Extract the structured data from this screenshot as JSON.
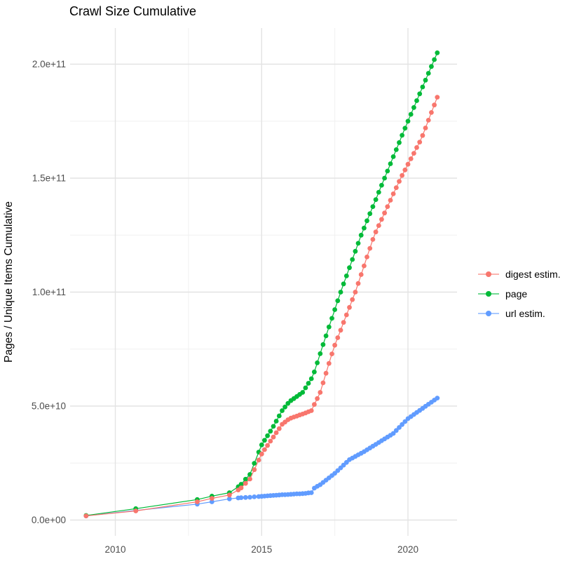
{
  "title": "Crawl Size Cumulative",
  "y_axis": {
    "label": "Pages / Unique Items Cumulative",
    "ticks": [
      {
        "label": "0.0e+00",
        "value_e9": 0
      },
      {
        "label": "5.0e+10",
        "value_e9": 50
      },
      {
        "label": "1.0e+11",
        "value_e9": 100
      },
      {
        "label": "1.5e+11",
        "value_e9": 150
      },
      {
        "label": "2.0e+11",
        "value_e9": 200
      }
    ],
    "minor_e9": [
      25,
      75,
      125,
      175
    ]
  },
  "x_axis": {
    "ticks": [
      {
        "label": "2010",
        "value": 2010
      },
      {
        "label": "2015",
        "value": 2015
      },
      {
        "label": "2020",
        "value": 2020
      }
    ],
    "minor": [
      2012.5,
      2017.5
    ]
  },
  "legend": {
    "position": "right",
    "items": [
      {
        "label": "digest estim.",
        "color": "#F8766D"
      },
      {
        "label": "page",
        "color": "#00BA38"
      },
      {
        "label": "url estim.",
        "color": "#619CFF"
      }
    ]
  },
  "chart_data": {
    "type": "line",
    "title": "Crawl Size Cumulative",
    "xlabel": "",
    "ylabel": "Pages / Unique Items Cumulative",
    "x_unit": "year (decimal)",
    "y_unit": "count in billions (1e9 items)",
    "xlim": [
      2008.4,
      2021.6
    ],
    "ylim_e9": [
      0,
      216
    ],
    "grid": true,
    "legend_position": "right",
    "marker": "point",
    "series": [
      {
        "name": "digest estim.",
        "color": "#F8766D",
        "points": [
          [
            2009,
            1.8
          ],
          [
            2010.7,
            4
          ],
          [
            2012.8,
            8
          ],
          [
            2013.3,
            9.5
          ],
          [
            2013.9,
            11
          ],
          [
            2014.2,
            13.2
          ],
          [
            2014.3,
            14.1
          ],
          [
            2014.45,
            16.1
          ],
          [
            2014.6,
            18
          ],
          [
            2014.75,
            22.1
          ],
          [
            2014.9,
            26.3
          ],
          [
            2015,
            29
          ],
          [
            2015.1,
            30.9
          ],
          [
            2015.2,
            32.7
          ],
          [
            2015.3,
            34.6
          ],
          [
            2015.4,
            36.4
          ],
          [
            2015.5,
            38.3
          ],
          [
            2015.6,
            40.1
          ],
          [
            2015.7,
            42
          ],
          [
            2015.8,
            43
          ],
          [
            2015.9,
            44
          ],
          [
            2016,
            44.7
          ],
          [
            2016.1,
            45.2
          ],
          [
            2016.2,
            45.6
          ],
          [
            2016.3,
            46.1
          ],
          [
            2016.4,
            46.5
          ],
          [
            2016.5,
            47
          ],
          [
            2016.6,
            47.5
          ],
          [
            2016.7,
            48
          ],
          [
            2016.8,
            50.7
          ],
          [
            2016.9,
            53.3
          ],
          [
            2017,
            56
          ],
          [
            2017.1,
            60.2
          ],
          [
            2017.2,
            64.4
          ],
          [
            2017.3,
            68.7
          ],
          [
            2017.4,
            72.9
          ],
          [
            2017.5,
            76.7
          ],
          [
            2017.6,
            80
          ],
          [
            2017.7,
            83.3
          ],
          [
            2017.8,
            86.7
          ],
          [
            2017.9,
            90
          ],
          [
            2018,
            93.3
          ],
          [
            2018.1,
            96.7
          ],
          [
            2018.2,
            100
          ],
          [
            2018.3,
            103.8
          ],
          [
            2018.4,
            107.7
          ],
          [
            2018.5,
            111.5
          ],
          [
            2018.6,
            115.4
          ],
          [
            2018.7,
            119.2
          ],
          [
            2018.8,
            123.1
          ],
          [
            2018.9,
            126.4
          ],
          [
            2019,
            129.2
          ],
          [
            2019.1,
            131.9
          ],
          [
            2019.2,
            134.7
          ],
          [
            2019.3,
            137.5
          ],
          [
            2019.4,
            140.3
          ],
          [
            2019.5,
            143.1
          ],
          [
            2019.6,
            145.8
          ],
          [
            2019.7,
            148.6
          ],
          [
            2019.8,
            151.2
          ],
          [
            2019.9,
            153.6
          ],
          [
            2020,
            156.1
          ],
          [
            2020.1,
            158.5
          ],
          [
            2020.2,
            160.9
          ],
          [
            2020.3,
            163.4
          ],
          [
            2020.4,
            165.8
          ],
          [
            2020.5,
            168.7
          ],
          [
            2020.6,
            172
          ],
          [
            2020.7,
            175.4
          ],
          [
            2020.8,
            178.8
          ],
          [
            2020.9,
            182.1
          ],
          [
            2021,
            185.5
          ]
        ]
      },
      {
        "name": "page",
        "color": "#00BA38",
        "points": [
          [
            2009,
            2
          ],
          [
            2010.7,
            5
          ],
          [
            2012.8,
            9
          ],
          [
            2013.3,
            10.5
          ],
          [
            2013.9,
            12
          ],
          [
            2014.2,
            14.6
          ],
          [
            2014.3,
            15.7
          ],
          [
            2014.45,
            17.9
          ],
          [
            2014.6,
            20
          ],
          [
            2014.75,
            24.9
          ],
          [
            2014.9,
            29.8
          ],
          [
            2015,
            33
          ],
          [
            2015.1,
            35
          ],
          [
            2015.2,
            37
          ],
          [
            2015.3,
            39
          ],
          [
            2015.4,
            41.1
          ],
          [
            2015.5,
            43.4
          ],
          [
            2015.6,
            45.7
          ],
          [
            2015.7,
            48
          ],
          [
            2015.8,
            49.6
          ],
          [
            2015.9,
            51.2
          ],
          [
            2016,
            52.4
          ],
          [
            2016.1,
            53.3
          ],
          [
            2016.2,
            54.2
          ],
          [
            2016.3,
            55.1
          ],
          [
            2016.4,
            56
          ],
          [
            2016.5,
            58
          ],
          [
            2016.6,
            60
          ],
          [
            2016.7,
            62
          ],
          [
            2016.8,
            65
          ],
          [
            2016.9,
            69
          ],
          [
            2017,
            73
          ],
          [
            2017.1,
            77
          ],
          [
            2017.2,
            80.8
          ],
          [
            2017.3,
            84.7
          ],
          [
            2017.4,
            88.5
          ],
          [
            2017.5,
            92.3
          ],
          [
            2017.6,
            96.2
          ],
          [
            2017.7,
            100
          ],
          [
            2017.8,
            103.6
          ],
          [
            2017.9,
            107.1
          ],
          [
            2018,
            110.7
          ],
          [
            2018.1,
            114.3
          ],
          [
            2018.2,
            117.9
          ],
          [
            2018.3,
            121.4
          ],
          [
            2018.4,
            125
          ],
          [
            2018.5,
            128.1
          ],
          [
            2018.6,
            131.3
          ],
          [
            2018.7,
            134.4
          ],
          [
            2018.8,
            137.5
          ],
          [
            2018.9,
            140.6
          ],
          [
            2019,
            143.8
          ],
          [
            2019.1,
            146.9
          ],
          [
            2019.2,
            150
          ],
          [
            2019.3,
            153.1
          ],
          [
            2019.4,
            156.3
          ],
          [
            2019.5,
            159.4
          ],
          [
            2019.6,
            162.5
          ],
          [
            2019.7,
            165.6
          ],
          [
            2019.8,
            168.8
          ],
          [
            2019.9,
            171.9
          ],
          [
            2020,
            175
          ],
          [
            2020.1,
            178
          ],
          [
            2020.2,
            181
          ],
          [
            2020.3,
            184
          ],
          [
            2020.4,
            187
          ],
          [
            2020.5,
            190
          ],
          [
            2020.6,
            193
          ],
          [
            2020.7,
            196
          ],
          [
            2020.8,
            199
          ],
          [
            2020.9,
            202
          ],
          [
            2021,
            205
          ]
        ]
      },
      {
        "name": "url estim.",
        "color": "#619CFF",
        "points": [
          [
            2009,
            1.8
          ],
          [
            2010.7,
            4.2
          ],
          [
            2012.8,
            7
          ],
          [
            2013.3,
            8
          ],
          [
            2013.9,
            9.3
          ],
          [
            2014.2,
            9.7
          ],
          [
            2014.3,
            9.8
          ],
          [
            2014.45,
            9.9
          ],
          [
            2014.6,
            10
          ],
          [
            2014.75,
            10.2
          ],
          [
            2014.9,
            10.3
          ],
          [
            2015,
            10.4
          ],
          [
            2015.1,
            10.5
          ],
          [
            2015.2,
            10.6
          ],
          [
            2015.3,
            10.7
          ],
          [
            2015.4,
            10.8
          ],
          [
            2015.5,
            10.9
          ],
          [
            2015.6,
            11
          ],
          [
            2015.7,
            11.1
          ],
          [
            2015.8,
            11.1
          ],
          [
            2015.9,
            11.2
          ],
          [
            2016,
            11.3
          ],
          [
            2016.1,
            11.4
          ],
          [
            2016.2,
            11.5
          ],
          [
            2016.3,
            11.5
          ],
          [
            2016.4,
            11.6
          ],
          [
            2016.5,
            11.7
          ],
          [
            2016.6,
            11.9
          ],
          [
            2016.7,
            12
          ],
          [
            2016.8,
            14
          ],
          [
            2016.9,
            14.8
          ],
          [
            2017,
            15.5
          ],
          [
            2017.1,
            16.5
          ],
          [
            2017.2,
            17.5
          ],
          [
            2017.3,
            18.5
          ],
          [
            2017.4,
            19.5
          ],
          [
            2017.5,
            20.5
          ],
          [
            2017.6,
            21.7
          ],
          [
            2017.7,
            22.9
          ],
          [
            2017.8,
            24.1
          ],
          [
            2017.9,
            25.3
          ],
          [
            2018,
            26.5
          ],
          [
            2018.1,
            27.2
          ],
          [
            2018.2,
            27.9
          ],
          [
            2018.3,
            28.6
          ],
          [
            2018.4,
            29.3
          ],
          [
            2018.5,
            30
          ],
          [
            2018.6,
            30.8
          ],
          [
            2018.7,
            31.6
          ],
          [
            2018.8,
            32.4
          ],
          [
            2018.9,
            33.2
          ],
          [
            2019,
            34
          ],
          [
            2019.1,
            34.8
          ],
          [
            2019.2,
            35.6
          ],
          [
            2019.3,
            36.4
          ],
          [
            2019.4,
            37.2
          ],
          [
            2019.5,
            38
          ],
          [
            2019.6,
            39.3
          ],
          [
            2019.7,
            40.6
          ],
          [
            2019.8,
            41.9
          ],
          [
            2019.9,
            43.2
          ],
          [
            2020,
            44.5
          ],
          [
            2020.1,
            45.4
          ],
          [
            2020.2,
            46.3
          ],
          [
            2020.3,
            47.2
          ],
          [
            2020.4,
            48.1
          ],
          [
            2020.5,
            49
          ],
          [
            2020.6,
            49.9
          ],
          [
            2020.7,
            50.8
          ],
          [
            2020.8,
            51.7
          ],
          [
            2020.9,
            52.6
          ],
          [
            2021,
            53.5
          ]
        ]
      }
    ]
  },
  "style": {
    "grid_major_color": "#e3e3e3",
    "grid_minor_color": "#f0f0f0",
    "tick_label_color": "#4d4d4d",
    "background": "#ffffff"
  }
}
